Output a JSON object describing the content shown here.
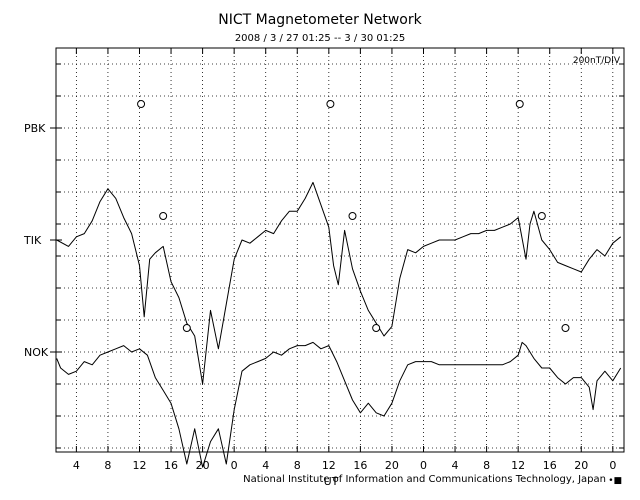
{
  "chart_data": {
    "type": "line",
    "title": "NICT Magnetometer Network",
    "subtitle": "2008 / 3 / 27   01:25 --  3 / 30   01:25",
    "scale_label": "200nT/DIV",
    "credit": "National Institute of Information and Communications Technology, Japan",
    "x_ticks": [
      "4",
      "8",
      "12",
      "16",
      "20",
      "0",
      "4",
      "8",
      "12",
      "16",
      "20",
      "0",
      "4",
      "8",
      "12",
      "16",
      "20",
      "0"
    ],
    "x_range_hours": [
      1.4167,
      73.4167
    ],
    "ut_label": "UT",
    "grid": "dotted",
    "series": [
      {
        "name": "PBK",
        "values": []
      },
      {
        "name": "TIK",
        "values": [
          [
            1.5,
            0
          ],
          [
            3,
            -0.2
          ],
          [
            4,
            0.1
          ],
          [
            5,
            0.2
          ],
          [
            6,
            0.6
          ],
          [
            7,
            1.2
          ],
          [
            8,
            1.6
          ],
          [
            9,
            1.3
          ],
          [
            10,
            0.7
          ],
          [
            11,
            0.2
          ],
          [
            12,
            -0.8
          ],
          [
            12.6,
            -2.4
          ],
          [
            13.3,
            -0.6
          ],
          [
            14,
            -0.4
          ],
          [
            15,
            -0.2
          ],
          [
            16,
            -1.3
          ],
          [
            17,
            -1.8
          ],
          [
            18,
            -2.6
          ],
          [
            19,
            -3.0
          ],
          [
            20,
            -4.5
          ],
          [
            21,
            -2.2
          ],
          [
            22,
            -3.4
          ],
          [
            23,
            -2.0
          ],
          [
            24,
            -0.6
          ],
          [
            25,
            0
          ],
          [
            26,
            -0.1
          ],
          [
            27,
            0.1
          ],
          [
            28,
            0.3
          ],
          [
            29,
            0.2
          ],
          [
            30,
            0.6
          ],
          [
            31,
            0.9
          ],
          [
            32,
            0.9
          ],
          [
            33,
            1.3
          ],
          [
            34,
            1.8
          ],
          [
            35,
            1.1
          ],
          [
            36,
            0.4
          ],
          [
            36.6,
            -0.8
          ],
          [
            37.2,
            -1.4
          ],
          [
            38,
            0.3
          ],
          [
            39,
            -0.9
          ],
          [
            40,
            -1.6
          ],
          [
            41,
            -2.2
          ],
          [
            42,
            -2.6
          ],
          [
            43,
            -3.0
          ],
          [
            44,
            -2.7
          ],
          [
            45,
            -1.2
          ],
          [
            46,
            -0.3
          ],
          [
            47,
            -0.4
          ],
          [
            48,
            -0.2
          ],
          [
            49,
            -0.1
          ],
          [
            50,
            0
          ],
          [
            51,
            0
          ],
          [
            52,
            0
          ],
          [
            53,
            0.1
          ],
          [
            54,
            0.2
          ],
          [
            55,
            0.2
          ],
          [
            56,
            0.3
          ],
          [
            57,
            0.3
          ],
          [
            58,
            0.4
          ],
          [
            59,
            0.5
          ],
          [
            60,
            0.7
          ],
          [
            61,
            -0.6
          ],
          [
            61.5,
            0.5
          ],
          [
            62,
            0.9
          ],
          [
            63,
            0
          ],
          [
            64,
            -0.3
          ],
          [
            65,
            -0.7
          ],
          [
            66,
            -0.8
          ],
          [
            67,
            -0.9
          ],
          [
            68,
            -1.0
          ],
          [
            69,
            -0.6
          ],
          [
            70,
            -0.3
          ],
          [
            71,
            -0.5
          ],
          [
            72,
            -0.1
          ],
          [
            73,
            0.1
          ]
        ]
      },
      {
        "name": "NOK",
        "values": [
          [
            1.5,
            -0.2
          ],
          [
            2,
            -0.5
          ],
          [
            3,
            -0.7
          ],
          [
            4,
            -0.6
          ],
          [
            5,
            -0.3
          ],
          [
            6,
            -0.4
          ],
          [
            7,
            -0.1
          ],
          [
            8,
            0
          ],
          [
            9,
            0.1
          ],
          [
            10,
            0.2
          ],
          [
            11,
            0
          ],
          [
            12,
            0.1
          ],
          [
            13,
            -0.1
          ],
          [
            14,
            -0.8
          ],
          [
            15,
            -1.2
          ],
          [
            16,
            -1.6
          ],
          [
            17,
            -2.4
          ],
          [
            18,
            -3.5
          ],
          [
            19,
            -2.4
          ],
          [
            20,
            -3.6
          ],
          [
            21,
            -2.8
          ],
          [
            22,
            -2.4
          ],
          [
            23,
            -3.5
          ],
          [
            24,
            -1.8
          ],
          [
            25,
            -0.6
          ],
          [
            26,
            -0.4
          ],
          [
            27,
            -0.3
          ],
          [
            28,
            -0.2
          ],
          [
            29,
            0
          ],
          [
            30,
            -0.1
          ],
          [
            31,
            0.1
          ],
          [
            32,
            0.2
          ],
          [
            33,
            0.2
          ],
          [
            34,
            0.3
          ],
          [
            35,
            0.1
          ],
          [
            36,
            0.2
          ],
          [
            37,
            -0.3
          ],
          [
            38,
            -0.9
          ],
          [
            39,
            -1.5
          ],
          [
            40,
            -1.9
          ],
          [
            41,
            -1.6
          ],
          [
            42,
            -1.9
          ],
          [
            43,
            -2.0
          ],
          [
            44,
            -1.6
          ],
          [
            45,
            -0.9
          ],
          [
            46,
            -0.4
          ],
          [
            47,
            -0.3
          ],
          [
            49,
            -0.3
          ],
          [
            50,
            -0.4
          ],
          [
            51,
            -0.4
          ],
          [
            52,
            -0.4
          ],
          [
            53,
            -0.4
          ],
          [
            54,
            -0.4
          ],
          [
            55,
            -0.4
          ],
          [
            56,
            -0.4
          ],
          [
            57,
            -0.4
          ],
          [
            58,
            -0.4
          ],
          [
            59,
            -0.3
          ],
          [
            60,
            -0.1
          ],
          [
            60.5,
            0.3
          ],
          [
            61,
            0.2
          ],
          [
            62,
            -0.2
          ],
          [
            63,
            -0.5
          ],
          [
            64,
            -0.5
          ],
          [
            65,
            -0.8
          ],
          [
            66,
            -1.0
          ],
          [
            67,
            -0.8
          ],
          [
            68,
            -0.8
          ],
          [
            69,
            -1.1
          ],
          [
            69.5,
            -1.8
          ],
          [
            70,
            -0.9
          ],
          [
            71,
            -0.6
          ],
          [
            72,
            -0.9
          ],
          [
            73,
            -0.5
          ]
        ]
      }
    ],
    "markers": [
      {
        "series": "PBK",
        "x": 12.2
      },
      {
        "series": "PBK",
        "x": 36.2
      },
      {
        "series": "PBK",
        "x": 60.2
      },
      {
        "series": "TIK",
        "x": 15.0
      },
      {
        "series": "TIK",
        "x": 39.0
      },
      {
        "series": "TIK",
        "x": 63.0
      },
      {
        "series": "NOK",
        "x": 18.0
      },
      {
        "series": "NOK",
        "x": 42.0
      },
      {
        "series": "NOK",
        "x": 66.0
      }
    ]
  },
  "page_marker": "•■"
}
